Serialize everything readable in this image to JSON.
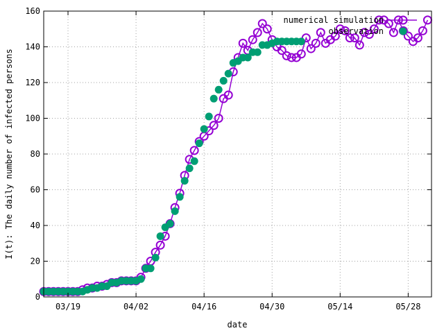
{
  "chart_data": {
    "type": "line",
    "xlabel": "date",
    "ylabel": "I(t): The daily number of infected persons",
    "x_tick_labels": [
      "03/19",
      "04/02",
      "04/16",
      "04/30",
      "05/14",
      "05/28"
    ],
    "x_tick_dates": [
      "2020-03-19",
      "2020-04-02",
      "2020-04-16",
      "2020-04-30",
      "2020-05-14",
      "2020-05-28"
    ],
    "xlim": [
      "2020-03-14",
      "2020-06-01"
    ],
    "ylim": [
      0,
      160
    ],
    "y_ticks": [
      0,
      20,
      40,
      60,
      80,
      100,
      120,
      140,
      160
    ],
    "grid": true,
    "legend_position": "top-right",
    "series": [
      {
        "name": "numerical simulation",
        "color": "#9400d3",
        "style": "line-open-circle",
        "x": [
          "2020-03-14",
          "2020-03-15",
          "2020-03-16",
          "2020-03-17",
          "2020-03-18",
          "2020-03-19",
          "2020-03-20",
          "2020-03-21",
          "2020-03-22",
          "2020-03-23",
          "2020-03-24",
          "2020-03-25",
          "2020-03-26",
          "2020-03-27",
          "2020-03-28",
          "2020-03-29",
          "2020-03-30",
          "2020-03-31",
          "2020-04-01",
          "2020-04-02",
          "2020-04-03",
          "2020-04-04",
          "2020-04-05",
          "2020-04-06",
          "2020-04-07",
          "2020-04-08",
          "2020-04-09",
          "2020-04-10",
          "2020-04-11",
          "2020-04-12",
          "2020-04-13",
          "2020-04-14",
          "2020-04-15",
          "2020-04-16",
          "2020-04-17",
          "2020-04-18",
          "2020-04-19",
          "2020-04-20",
          "2020-04-21",
          "2020-04-22",
          "2020-04-23",
          "2020-04-24",
          "2020-04-25",
          "2020-04-26",
          "2020-04-27",
          "2020-04-28",
          "2020-04-29",
          "2020-04-30",
          "2020-05-01",
          "2020-05-02",
          "2020-05-03",
          "2020-05-04",
          "2020-05-05",
          "2020-05-06",
          "2020-05-07",
          "2020-05-08",
          "2020-05-09",
          "2020-05-10",
          "2020-05-11",
          "2020-05-12",
          "2020-05-13",
          "2020-05-14",
          "2020-05-15",
          "2020-05-16",
          "2020-05-17",
          "2020-05-18",
          "2020-05-19",
          "2020-05-20",
          "2020-05-21",
          "2020-05-22",
          "2020-05-23",
          "2020-05-24",
          "2020-05-25",
          "2020-05-26",
          "2020-05-27",
          "2020-05-28",
          "2020-05-29",
          "2020-05-30",
          "2020-05-31",
          "2020-06-01"
        ],
        "y": [
          3,
          3,
          3,
          3,
          3,
          3,
          3,
          3,
          4,
          5,
          5,
          6,
          6,
          7,
          8,
          8,
          9,
          9,
          9,
          9,
          11,
          16,
          20,
          25,
          29,
          34,
          41,
          50,
          58,
          68,
          77,
          82,
          87,
          90,
          93,
          96,
          100,
          111,
          113,
          126,
          134,
          142,
          138,
          144,
          148,
          153,
          150,
          144,
          140,
          138,
          135,
          134,
          134,
          136,
          145,
          139,
          142,
          148,
          142,
          144,
          146,
          150,
          149,
          145,
          145,
          141,
          148,
          147,
          150,
          155,
          155,
          153,
          148,
          155,
          149,
          146,
          143,
          145,
          149,
          155
        ]
      },
      {
        "name": "observation",
        "color": "#009e73",
        "style": "filled-circle",
        "x": [
          "2020-03-14",
          "2020-03-15",
          "2020-03-16",
          "2020-03-17",
          "2020-03-18",
          "2020-03-19",
          "2020-03-20",
          "2020-03-21",
          "2020-03-22",
          "2020-03-23",
          "2020-03-24",
          "2020-03-25",
          "2020-03-26",
          "2020-03-27",
          "2020-03-28",
          "2020-03-29",
          "2020-03-30",
          "2020-03-31",
          "2020-04-01",
          "2020-04-02",
          "2020-04-03",
          "2020-04-04",
          "2020-04-05",
          "2020-04-06",
          "2020-04-07",
          "2020-04-08",
          "2020-04-09",
          "2020-04-10",
          "2020-04-11",
          "2020-04-12",
          "2020-04-13",
          "2020-04-14",
          "2020-04-15",
          "2020-04-16",
          "2020-04-17",
          "2020-04-18",
          "2020-04-19",
          "2020-04-20",
          "2020-04-21",
          "2020-04-22",
          "2020-04-23",
          "2020-04-24",
          "2020-04-25",
          "2020-04-26",
          "2020-04-27",
          "2020-04-28",
          "2020-04-29",
          "2020-04-30",
          "2020-05-01",
          "2020-05-02",
          "2020-05-03",
          "2020-05-04",
          "2020-05-05",
          "2020-05-06"
        ],
        "y": [
          3,
          3,
          3,
          3,
          3,
          3,
          3,
          3,
          3,
          4,
          5,
          5,
          6,
          6,
          8,
          8,
          9,
          9,
          9,
          9,
          10,
          16,
          16,
          22,
          34,
          39,
          41,
          48,
          56,
          65,
          72,
          76,
          86,
          94,
          101,
          111,
          116,
          121,
          125,
          131,
          132,
          134,
          134,
          137,
          137,
          141,
          141,
          142,
          143,
          143,
          143,
          143,
          143,
          143
        ]
      }
    ]
  }
}
